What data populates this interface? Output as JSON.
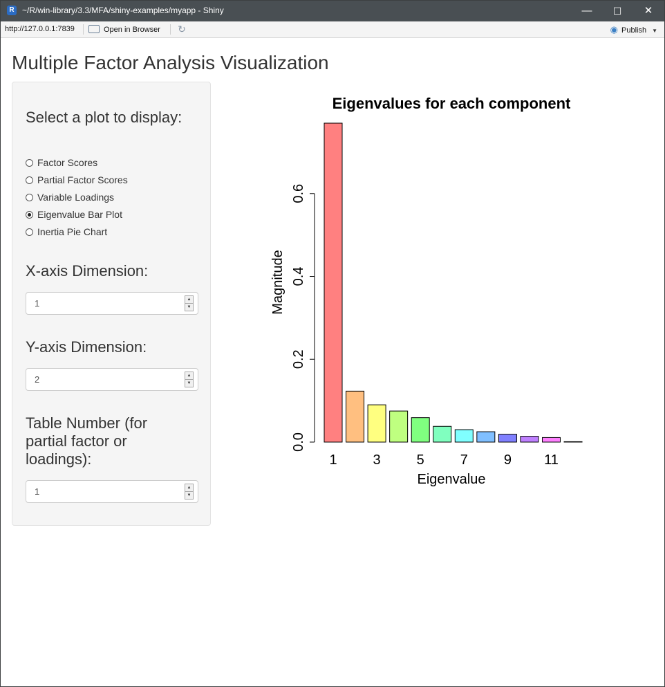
{
  "window": {
    "title": "~/R/win-library/3.3/MFA/shiny-examples/myapp - Shiny",
    "minimize": "—",
    "maximize": "☐",
    "close": "✕"
  },
  "toolbar": {
    "url": "http://127.0.0.1:7839",
    "open_in_browser": "Open in Browser",
    "publish": "Publish"
  },
  "app": {
    "title": "Multiple Factor Analysis Visualization"
  },
  "sidebar": {
    "plot_select_label": "Select a plot to display:",
    "plot_options": [
      {
        "label": "Factor Scores",
        "selected": false
      },
      {
        "label": "Partial Factor Scores",
        "selected": false
      },
      {
        "label": "Variable Loadings",
        "selected": false
      },
      {
        "label": "Eigenvalue Bar Plot",
        "selected": true
      },
      {
        "label": "Inertia Pie Chart",
        "selected": false
      }
    ],
    "x_dim_label": "X-axis Dimension:",
    "x_dim_value": "1",
    "y_dim_label": "Y-axis Dimension:",
    "y_dim_value": "2",
    "table_label": "Table Number (for partial factor or loadings):",
    "table_value": "1"
  },
  "chart_data": {
    "type": "bar",
    "title": "Eigenvalues for each component",
    "xlabel": "Eigenvalue",
    "ylabel": "Magnitude",
    "categories": [
      "1",
      "2",
      "3",
      "4",
      "5",
      "6",
      "7",
      "8",
      "9",
      "10",
      "11",
      "12"
    ],
    "x_tick_labels": [
      "1",
      "3",
      "5",
      "7",
      "9",
      "11"
    ],
    "values": [
      0.77,
      0.123,
      0.09,
      0.075,
      0.059,
      0.038,
      0.03,
      0.025,
      0.019,
      0.014,
      0.011,
      0.001
    ],
    "ylim": [
      0,
      0.77
    ],
    "y_ticks": [
      "0.0",
      "0.2",
      "0.4",
      "0.6"
    ],
    "colors": [
      "#FF8080",
      "#FFBF80",
      "#FFFF80",
      "#BFFF80",
      "#80FF80",
      "#80FFBF",
      "#80FFFF",
      "#80BFFF",
      "#8080FF",
      "#BF80FF",
      "#FF80FF",
      "#FF80BF"
    ],
    "grid": false
  }
}
